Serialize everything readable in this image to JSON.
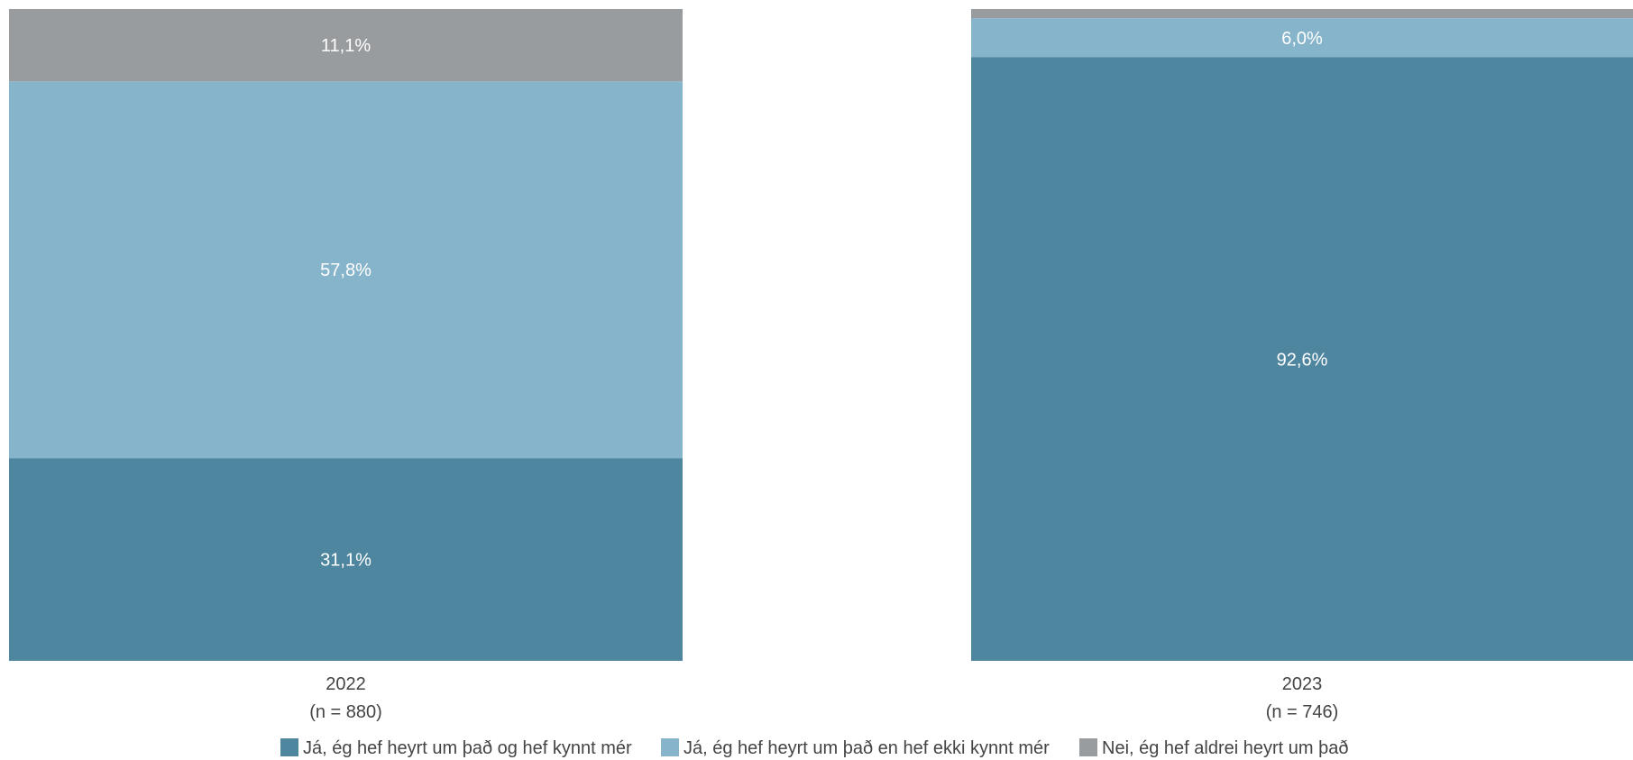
{
  "chart_data": {
    "type": "bar",
    "stacked": true,
    "percent": true,
    "categories": [
      "2022",
      "2023"
    ],
    "category_sublabels": [
      "(n = 880)",
      "(n = 746)"
    ],
    "series": [
      {
        "name": "Já, ég hef heyrt um það og hef kynnt mér",
        "values": [
          31.1,
          92.6
        ],
        "labels": [
          "31,1%",
          "92,6%"
        ],
        "color": "#4e86a0"
      },
      {
        "name": "Já, ég hef heyrt um það en hef ekki kynnt mér",
        "values": [
          57.8,
          6.0
        ],
        "labels": [
          "57,8%",
          "6,0%"
        ],
        "color": "#86b4cb"
      },
      {
        "name": "Nei, ég hef aldrei heyrt um það",
        "values": [
          11.1,
          1.4
        ],
        "labels": [
          "11,1%",
          ""
        ],
        "color": "#999c9e"
      }
    ],
    "ylim": [
      0,
      100
    ],
    "grid": false,
    "legend": "bottom"
  }
}
